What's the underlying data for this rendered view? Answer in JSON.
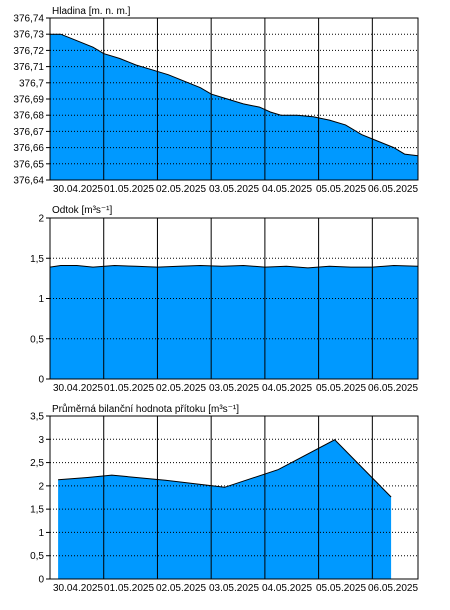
{
  "chart_data": [
    {
      "type": "area",
      "title": "Hladina [m. n. m.]",
      "categories": [
        "30.04.2025",
        "01.05.2025",
        "02.05.2025",
        "03.05.2025",
        "04.05.2025",
        "05.05.2025",
        "06.05.2025"
      ],
      "ylim": [
        376.64,
        376.74
      ],
      "yticks": [
        "376,64",
        "376,65",
        "376,66",
        "376,67",
        "376,68",
        "376,69",
        "376,7",
        "376,71",
        "376,72",
        "376,73",
        "376,74"
      ],
      "xlim": [
        0,
        6.85
      ],
      "x": [
        0,
        0.2,
        0.5,
        0.8,
        1.0,
        1.3,
        1.6,
        1.9,
        2.2,
        2.5,
        2.8,
        3.0,
        3.3,
        3.6,
        3.9,
        4.1,
        4.3,
        4.6,
        4.9,
        5.2,
        5.5,
        5.8,
        6.1,
        6.4,
        6.6,
        6.85
      ],
      "values": [
        376.73,
        376.73,
        376.726,
        376.722,
        376.718,
        376.715,
        376.711,
        376.708,
        376.705,
        376.701,
        376.697,
        376.693,
        376.69,
        376.687,
        376.685,
        376.682,
        376.68,
        376.68,
        376.679,
        376.677,
        376.674,
        376.668,
        376.664,
        376.66,
        376.656,
        376.655
      ],
      "color": "#0099ff",
      "grid": true
    },
    {
      "type": "area",
      "title": "Odtok [m³s⁻¹]",
      "categories": [
        "30.04.2025",
        "01.05.2025",
        "02.05.2025",
        "03.05.2025",
        "04.05.2025",
        "05.05.2025",
        "06.05.2025"
      ],
      "ylim": [
        0,
        2
      ],
      "yticks": [
        "0",
        "0,5",
        "1",
        "1,5",
        "2"
      ],
      "xlim": [
        0,
        6.85
      ],
      "x": [
        0,
        0.2,
        0.5,
        0.8,
        1.2,
        1.6,
        2.0,
        2.4,
        2.8,
        3.2,
        3.6,
        4.0,
        4.4,
        4.8,
        5.2,
        5.6,
        6.0,
        6.4,
        6.85
      ],
      "values": [
        1.39,
        1.41,
        1.41,
        1.39,
        1.41,
        1.4,
        1.39,
        1.4,
        1.41,
        1.4,
        1.41,
        1.39,
        1.4,
        1.38,
        1.4,
        1.39,
        1.39,
        1.41,
        1.4
      ],
      "color": "#0099ff",
      "grid": true
    },
    {
      "type": "area",
      "title": "Průměrná bilanční hodnota přítoku   [m³s⁻¹]",
      "categories": [
        "30.04.2025",
        "01.05.2025",
        "02.05.2025",
        "03.05.2025",
        "04.05.2025",
        "05.05.2025",
        "06.05.2025"
      ],
      "ylim": [
        0,
        3.5
      ],
      "yticks": [
        "0",
        "0,5",
        "1",
        "1,5",
        "2",
        "2,5",
        "3",
        "3,5"
      ],
      "xlim": [
        0,
        6.85
      ],
      "x": [
        0.15,
        0.7,
        1.15,
        2.15,
        3.25,
        4.25,
        5.3,
        6.35
      ],
      "values": [
        2.13,
        2.18,
        2.23,
        2.12,
        1.97,
        2.35,
        2.99,
        1.76
      ],
      "color": "#0099ff",
      "grid": true
    }
  ]
}
